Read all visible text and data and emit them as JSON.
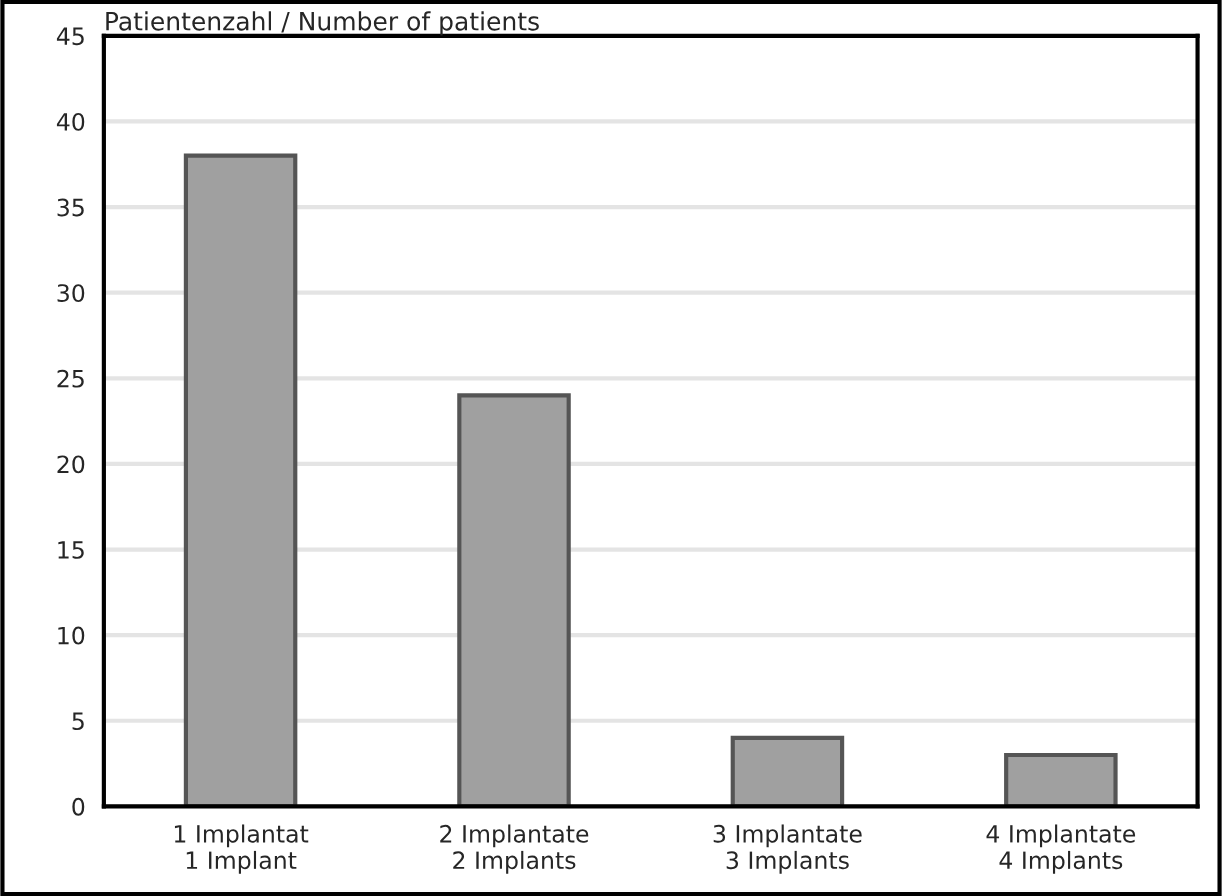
{
  "chart_data": {
    "type": "bar",
    "title": "Patientenzahl / Number of patients",
    "categories": [
      "1 Implantat\n1 Implant",
      "2 Implantate\n2 Implants",
      "3 Implantate\n3 Implants",
      "4 Implantate\n4 Implants"
    ],
    "values": [
      38,
      24,
      4,
      3
    ],
    "color": "#a0a0a0",
    "ylim": [
      0,
      45
    ],
    "yticks": [
      0,
      5,
      10,
      15,
      20,
      25,
      30,
      35,
      40,
      45
    ],
    "grid": "y"
  }
}
